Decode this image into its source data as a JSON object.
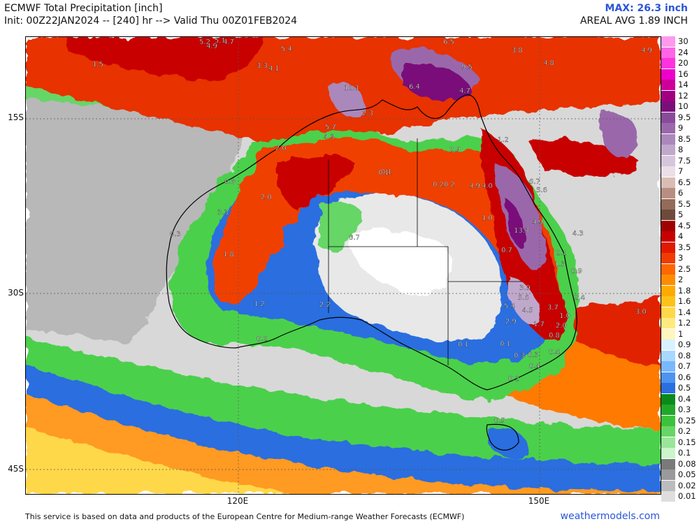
{
  "header": {
    "title": "ECMWF Total Precipitation [inch]",
    "subtitle": "Init: 00Z22JAN2024 -- [240] hr --> Valid Thu 00Z01FEB2024",
    "max_label": "MAX: 26.3 inch",
    "avg_label": "AREAL AVG 1.89 INCH"
  },
  "axes": {
    "lat_labels": [
      "15S",
      "30S",
      "45S"
    ],
    "lon_labels": [
      "120E",
      "150E"
    ]
  },
  "legend": {
    "items": [
      {
        "label": "30",
        "color": "#ff99ee"
      },
      {
        "label": "24",
        "color": "#ff66e6"
      },
      {
        "label": "20",
        "color": "#ff33dd"
      },
      {
        "label": "16",
        "color": "#ee00cc"
      },
      {
        "label": "14",
        "color": "#cc0099"
      },
      {
        "label": "12",
        "color": "#a00080"
      },
      {
        "label": "10",
        "color": "#7a0f7a"
      },
      {
        "label": "9.5",
        "color": "#8a4a9a"
      },
      {
        "label": "9",
        "color": "#9a68aa"
      },
      {
        "label": "8.5",
        "color": "#ab88bb"
      },
      {
        "label": "8",
        "color": "#c0a8cc"
      },
      {
        "label": "7.5",
        "color": "#d6c6dc"
      },
      {
        "label": "7",
        "color": "#ecdfe8"
      },
      {
        "label": "6.5",
        "color": "#d9bdb5"
      },
      {
        "label": "6",
        "color": "#b98e82"
      },
      {
        "label": "5.5",
        "color": "#946a5a"
      },
      {
        "label": "5",
        "color": "#6e4a3c"
      },
      {
        "label": "4.5",
        "color": "#a00000"
      },
      {
        "label": "4",
        "color": "#c80000"
      },
      {
        "label": "3.5",
        "color": "#e01a00"
      },
      {
        "label": "3",
        "color": "#f03c00"
      },
      {
        "label": "2.5",
        "color": "#ff6600"
      },
      {
        "label": "2",
        "color": "#ff8c00"
      },
      {
        "label": "1.8",
        "color": "#ffaa00"
      },
      {
        "label": "1.6",
        "color": "#ffc21a"
      },
      {
        "label": "1.4",
        "color": "#ffd84a"
      },
      {
        "label": "1.2",
        "color": "#ffea80"
      },
      {
        "label": "1",
        "color": "#fff6c0"
      },
      {
        "label": "0.9",
        "color": "#d8f2ff"
      },
      {
        "label": "0.8",
        "color": "#a8d8ff"
      },
      {
        "label": "0.7",
        "color": "#78b8ff"
      },
      {
        "label": "0.6",
        "color": "#4d94f0"
      },
      {
        "label": "0.5",
        "color": "#2a6ee0"
      },
      {
        "label": "0.4",
        "color": "#0a8a1a"
      },
      {
        "label": "0.3",
        "color": "#20a82a"
      },
      {
        "label": "0.25",
        "color": "#3cc23c"
      },
      {
        "label": "0.2",
        "color": "#66d666"
      },
      {
        "label": "0.15",
        "color": "#99e699"
      },
      {
        "label": "0.1",
        "color": "#ccf5cc"
      },
      {
        "label": "0.08",
        "color": "#7a7a7a"
      },
      {
        "label": "0.05",
        "color": "#9a9a9a"
      },
      {
        "label": "0.02",
        "color": "#bcbcbc"
      },
      {
        "label": "0.01",
        "color": "#dedede"
      }
    ]
  },
  "map_labels": [
    "1.5",
    "5.2",
    "4.9",
    "5.1",
    "4.7",
    "3.3",
    "4.1",
    "5.4",
    "6.5",
    "3.8",
    "4.8",
    "4.9",
    "10.1",
    "6.4",
    "9.5",
    "2.3",
    "4.7",
    "5.7",
    "4.3",
    "2.0",
    "2.9",
    "1.2",
    "0.8",
    "0.1",
    "0.2",
    "0.2",
    "4.9",
    "4.0",
    "6.7",
    "5.6",
    "2.0",
    "3.3",
    "1.0",
    "13.3",
    "4.9",
    "4.3",
    "0.7",
    "0.3",
    "0.7",
    "1.8",
    "2.1",
    "1.3",
    "1.2",
    "2.2",
    "3.9",
    "5.6",
    "5.4",
    "4.5",
    "3.7",
    "2.4",
    "0.9",
    "1.0",
    "2.9",
    "1.7",
    "2.0",
    "3.0",
    "0.2",
    "0.1",
    "0.1",
    "0.8",
    "0.1",
    "0.3",
    "0.3",
    "0.4",
    "0.4",
    "0.2",
    "0.5"
  ],
  "footer": {
    "attribution": "This service is based on data and products of the European Centre for Medium-range Weather Forecasts (ECMWF)",
    "brand": "weathermodels.com"
  }
}
